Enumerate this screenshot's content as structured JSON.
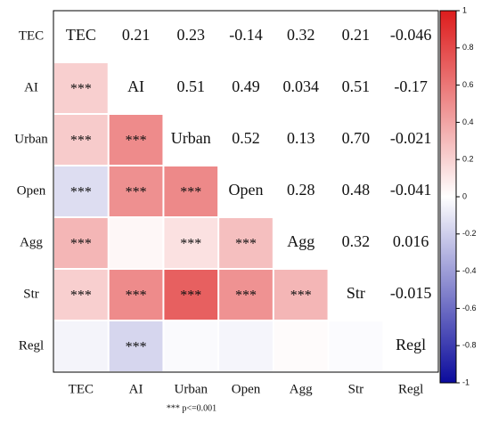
{
  "chart_data": {
    "type": "heatmap",
    "categories": [
      "TEC",
      "AI",
      "Urban",
      "Open",
      "Agg",
      "Str",
      "Regl"
    ],
    "values": [
      [
        null,
        0.21,
        0.23,
        -0.14,
        0.32,
        0.21,
        -0.046
      ],
      [
        null,
        null,
        0.51,
        0.49,
        0.034,
        0.51,
        -0.17
      ],
      [
        null,
        null,
        null,
        0.52,
        0.13,
        0.7,
        -0.021
      ],
      [
        null,
        null,
        null,
        null,
        0.28,
        0.48,
        -0.041
      ],
      [
        null,
        null,
        null,
        null,
        null,
        0.32,
        0.016
      ],
      [
        null,
        null,
        null,
        null,
        null,
        null,
        -0.015
      ],
      [
        null,
        null,
        null,
        null,
        null,
        null,
        null
      ]
    ],
    "value_labels": [
      [
        null,
        "0.21",
        "0.23",
        "-0.14",
        "0.32",
        "0.21",
        "-0.046"
      ],
      [
        null,
        null,
        "0.51",
        "0.49",
        "0.034",
        "0.51",
        "-0.17"
      ],
      [
        null,
        null,
        null,
        "0.52",
        "0.13",
        "0.70",
        "-0.021"
      ],
      [
        null,
        null,
        null,
        null,
        "0.28",
        "0.48",
        "-0.041"
      ],
      [
        null,
        null,
        null,
        null,
        null,
        "0.32",
        "0.016"
      ],
      [
        null,
        null,
        null,
        null,
        null,
        null,
        "-0.015"
      ],
      [
        null,
        null,
        null,
        null,
        null,
        null,
        null
      ]
    ],
    "significance_labels": [
      [
        null,
        null,
        null,
        null,
        null,
        null,
        null
      ],
      [
        "***",
        null,
        null,
        null,
        null,
        null,
        null
      ],
      [
        "***",
        "***",
        null,
        null,
        null,
        null,
        null
      ],
      [
        "***",
        "***",
        "***",
        null,
        null,
        null,
        null
      ],
      [
        "***",
        null,
        "***",
        "***",
        null,
        null,
        null
      ],
      [
        "***",
        "***",
        "***",
        "***",
        "***",
        null,
        null
      ],
      [
        null,
        "***",
        null,
        null,
        null,
        null,
        null
      ]
    ],
    "note": "*** p<=0.001",
    "colormap": [
      "#0b0b9c",
      "#ffffff",
      "#dd1c1c"
    ],
    "clim": [
      -1,
      1
    ],
    "cticks": [
      1,
      0.8,
      0.6,
      0.4,
      0.2,
      0,
      -0.2,
      -0.4,
      -0.6,
      -0.8,
      -1
    ]
  }
}
